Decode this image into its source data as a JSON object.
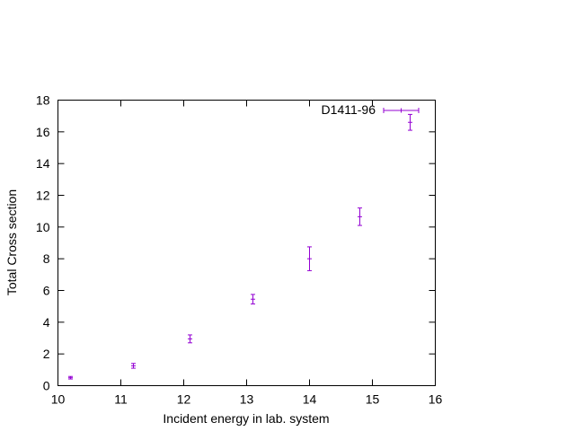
{
  "chart_data": {
    "type": "scatter",
    "title": "",
    "xlabel": "Incident energy in lab. system",
    "ylabel": "Total Cross section",
    "xlim": [
      10,
      16
    ],
    "ylim": [
      0,
      18
    ],
    "x_ticks": [
      "10",
      "11",
      "12",
      "13",
      "14",
      "15",
      "16"
    ],
    "y_ticks": [
      "0",
      "2",
      "4",
      "6",
      "8",
      "10",
      "12",
      "14",
      "16",
      "18"
    ],
    "grid": false,
    "legend_position": "top-right",
    "series": [
      {
        "name": "D1411-96",
        "color": "#9400d3",
        "points": [
          {
            "x": 10.2,
            "y": 0.5,
            "yerr": 0.08
          },
          {
            "x": 11.2,
            "y": 1.25,
            "yerr": 0.15
          },
          {
            "x": 12.1,
            "y": 2.95,
            "yerr": 0.25
          },
          {
            "x": 13.1,
            "y": 5.45,
            "yerr": 0.3
          },
          {
            "x": 14.0,
            "y": 8.0,
            "yerr": 0.75
          },
          {
            "x": 14.8,
            "y": 10.65,
            "yerr": 0.55
          },
          {
            "x": 15.6,
            "y": 16.6,
            "yerr": 0.5
          }
        ]
      }
    ]
  }
}
